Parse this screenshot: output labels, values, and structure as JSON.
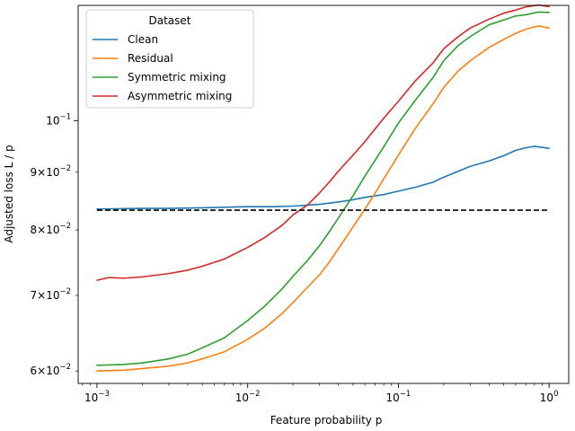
{
  "chart_data": {
    "type": "line",
    "xlabel": "Feature probability p",
    "ylabel": "Adjusted loss L / p",
    "xscale": "log",
    "yscale": "log",
    "xlim": [
      0.00075,
      1.35
    ],
    "ylim": [
      0.0585,
      0.1265
    ],
    "grid": false,
    "legend": {
      "title": "Dataset",
      "placement": "top-left"
    },
    "x_ticks": [
      {
        "value": 0.001,
        "base": "10",
        "exp": "−3"
      },
      {
        "value": 0.01,
        "base": "10",
        "exp": "−2"
      },
      {
        "value": 0.1,
        "base": "10",
        "exp": "−1"
      },
      {
        "value": 1,
        "base": "10",
        "exp": "0"
      }
    ],
    "y_ticks": [
      {
        "value": 0.06,
        "mant": "6×10",
        "exp": "−2"
      },
      {
        "value": 0.07,
        "mant": "7×10",
        "exp": "−2"
      },
      {
        "value": 0.08,
        "mant": "8×10",
        "exp": "−2"
      },
      {
        "value": 0.09,
        "mant": "9×10",
        "exp": "−2"
      },
      {
        "value": 0.1,
        "mant": "10",
        "exp": "−1"
      }
    ],
    "reference_line": {
      "y": 0.0833,
      "x_range": [
        0.001,
        1
      ],
      "style": "dashed",
      "color": "#000000"
    },
    "series": [
      {
        "name": "Clean",
        "color": "#1f77b4",
        "x": [
          0.001,
          0.002,
          0.003,
          0.005,
          0.007,
          0.01,
          0.015,
          0.02,
          0.03,
          0.04,
          0.05,
          0.06,
          0.08,
          0.1,
          0.13,
          0.17,
          0.2,
          0.25,
          0.3,
          0.4,
          0.5,
          0.6,
          0.7,
          0.8,
          1.0
        ],
        "y": [
          0.0835,
          0.0836,
          0.0836,
          0.0837,
          0.0838,
          0.0839,
          0.0839,
          0.084,
          0.0843,
          0.0847,
          0.0851,
          0.0855,
          0.086,
          0.0866,
          0.0873,
          0.0882,
          0.0891,
          0.0902,
          0.0911,
          0.0921,
          0.0931,
          0.0941,
          0.0946,
          0.0949,
          0.0945
        ]
      },
      {
        "name": "Residual",
        "color": "#ff7f0e",
        "x": [
          0.001,
          0.0015,
          0.002,
          0.003,
          0.004,
          0.005,
          0.007,
          0.01,
          0.013,
          0.017,
          0.02,
          0.025,
          0.03,
          0.035,
          0.04,
          0.05,
          0.06,
          0.07,
          0.08,
          0.1,
          0.13,
          0.17,
          0.2,
          0.25,
          0.3,
          0.4,
          0.5,
          0.6,
          0.7,
          0.85,
          1.0
        ],
        "y": [
          0.06,
          0.0601,
          0.0603,
          0.0606,
          0.061,
          0.0615,
          0.0624,
          0.064,
          0.0655,
          0.0675,
          0.069,
          0.0712,
          0.073,
          0.075,
          0.077,
          0.0805,
          0.0835,
          0.0862,
          0.0888,
          0.0932,
          0.0985,
          0.1035,
          0.107,
          0.1107,
          0.113,
          0.1161,
          0.118,
          0.1195,
          0.1205,
          0.1213,
          0.1208
        ]
      },
      {
        "name": "Symmetric mixing",
        "color": "#2ca02c",
        "x": [
          0.001,
          0.0015,
          0.002,
          0.003,
          0.004,
          0.005,
          0.007,
          0.01,
          0.013,
          0.017,
          0.02,
          0.025,
          0.03,
          0.035,
          0.04,
          0.05,
          0.06,
          0.07,
          0.08,
          0.1,
          0.13,
          0.17,
          0.2,
          0.25,
          0.3,
          0.4,
          0.5,
          0.6,
          0.7,
          0.85,
          1.0
        ],
        "y": [
          0.0607,
          0.0608,
          0.061,
          0.0615,
          0.0621,
          0.0629,
          0.0642,
          0.0665,
          0.0685,
          0.071,
          0.0728,
          0.0752,
          0.0775,
          0.0798,
          0.082,
          0.0858,
          0.0893,
          0.0922,
          0.0948,
          0.0995,
          0.1043,
          0.1092,
          0.113,
          0.1166,
          0.1187,
          0.1216,
          0.1228,
          0.1238,
          0.1241,
          0.1248,
          0.1247
        ]
      },
      {
        "name": "Asymmetric mixing",
        "color": "#d62728",
        "x": [
          0.001,
          0.0012,
          0.0015,
          0.002,
          0.003,
          0.004,
          0.005,
          0.007,
          0.01,
          0.013,
          0.017,
          0.02,
          0.025,
          0.03,
          0.035,
          0.04,
          0.05,
          0.06,
          0.07,
          0.08,
          0.1,
          0.13,
          0.17,
          0.2,
          0.25,
          0.3,
          0.4,
          0.5,
          0.6,
          0.7,
          0.85,
          1.0
        ],
        "y": [
          0.0722,
          0.0726,
          0.0725,
          0.0727,
          0.0732,
          0.0737,
          0.0743,
          0.0754,
          0.0772,
          0.0788,
          0.0808,
          0.0825,
          0.0842,
          0.0863,
          0.0883,
          0.0902,
          0.0932,
          0.0958,
          0.0983,
          0.1005,
          0.104,
          0.1085,
          0.1125,
          0.1158,
          0.1187,
          0.1208,
          0.123,
          0.1245,
          0.1253,
          0.1261,
          0.1266,
          0.1262
        ]
      }
    ]
  }
}
